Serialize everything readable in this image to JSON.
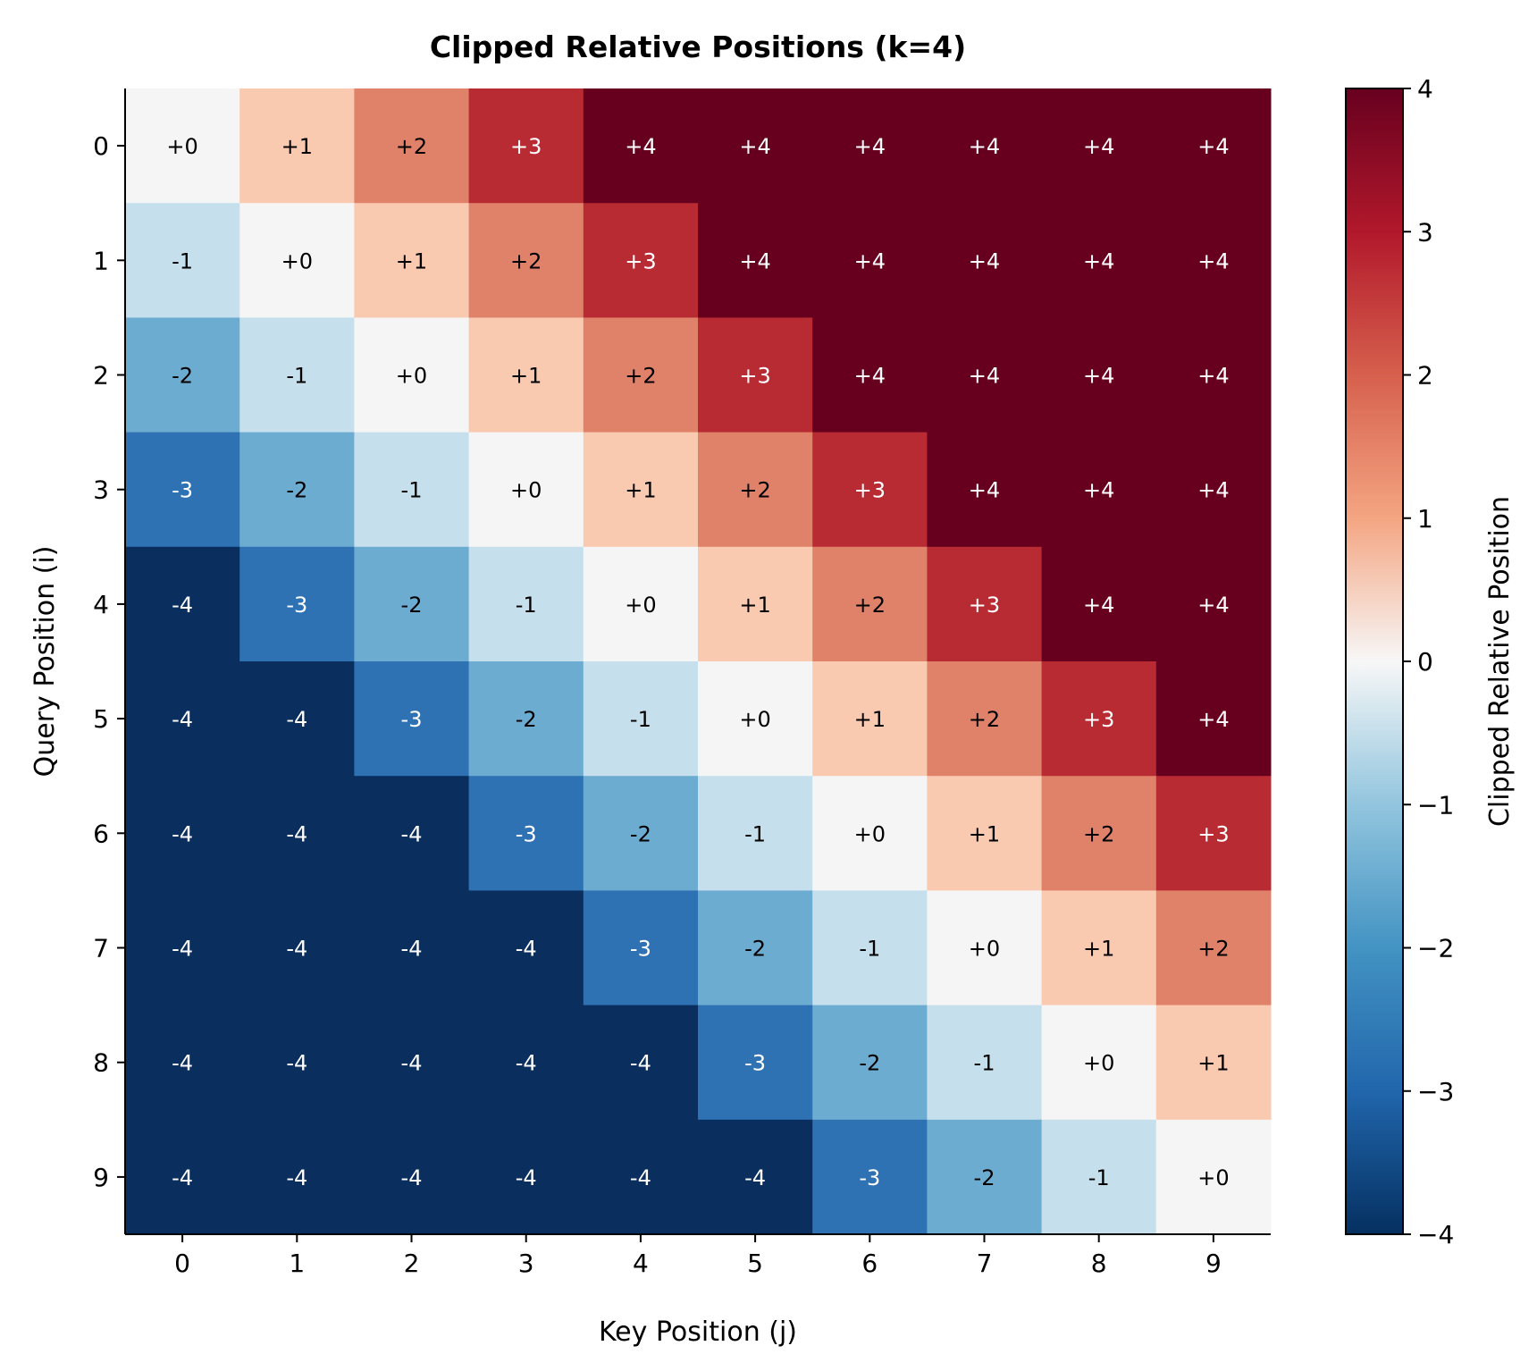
{
  "chart_data": {
    "type": "heatmap",
    "title": "Clipped Relative Positions (k=4)",
    "xlabel": "Key Position (j)",
    "ylabel": "Query Position (i)",
    "x_ticks": [
      "0",
      "1",
      "2",
      "3",
      "4",
      "5",
      "6",
      "7",
      "8",
      "9"
    ],
    "y_ticks": [
      "0",
      "1",
      "2",
      "3",
      "4",
      "5",
      "6",
      "7",
      "8",
      "9"
    ],
    "values": [
      [
        0,
        1,
        2,
        3,
        4,
        4,
        4,
        4,
        4,
        4
      ],
      [
        -1,
        0,
        1,
        2,
        3,
        4,
        4,
        4,
        4,
        4
      ],
      [
        -2,
        -1,
        0,
        1,
        2,
        3,
        4,
        4,
        4,
        4
      ],
      [
        -3,
        -2,
        -1,
        0,
        1,
        2,
        3,
        4,
        4,
        4
      ],
      [
        -4,
        -3,
        -2,
        -1,
        0,
        1,
        2,
        3,
        4,
        4
      ],
      [
        -4,
        -4,
        -3,
        -2,
        -1,
        0,
        1,
        2,
        3,
        4
      ],
      [
        -4,
        -4,
        -4,
        -3,
        -2,
        -1,
        0,
        1,
        2,
        3
      ],
      [
        -4,
        -4,
        -4,
        -4,
        -3,
        -2,
        -1,
        0,
        1,
        2
      ],
      [
        -4,
        -4,
        -4,
        -4,
        -4,
        -3,
        -2,
        -1,
        0,
        1
      ],
      [
        -4,
        -4,
        -4,
        -4,
        -4,
        -4,
        -3,
        -2,
        -1,
        0
      ]
    ],
    "colormap": "RdBu_r",
    "vmin": -4,
    "vmax": 4,
    "level_colors": {
      "-4": "#0a2f5f",
      "-3": "#2e72b4",
      "-2": "#6dacd1",
      "-1": "#c5dfec",
      "0": "#f5f5f5",
      "1": "#f9c9b0",
      "2": "#e0826a",
      "3": "#b82b33",
      "4": "#67001f"
    },
    "colorbar": {
      "label": "Clipped Relative Position",
      "ticks": [
        "4",
        "3",
        "2",
        "1",
        "0",
        "−1",
        "−2",
        "−3",
        "−4"
      ]
    },
    "annotations_signed": true
  }
}
